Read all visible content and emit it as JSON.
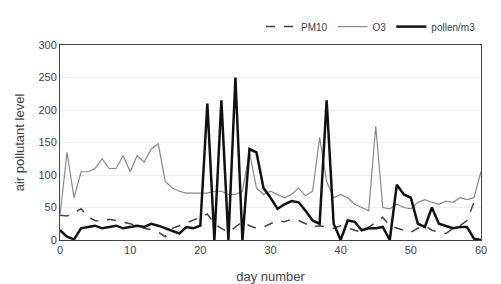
{
  "chart_data": {
    "type": "line",
    "xlabel": "day number",
    "ylabel": "air pollutant level",
    "x": [
      0,
      1,
      2,
      3,
      4,
      5,
      6,
      7,
      8,
      9,
      10,
      11,
      12,
      13,
      14,
      15,
      16,
      17,
      18,
      19,
      20,
      21,
      22,
      23,
      24,
      25,
      26,
      27,
      28,
      29,
      30,
      31,
      32,
      33,
      34,
      35,
      36,
      37,
      38,
      39,
      40,
      41,
      42,
      43,
      44,
      45,
      46,
      47,
      48,
      49,
      50,
      51,
      52,
      53,
      54,
      55,
      56,
      57,
      58,
      59,
      60
    ],
    "series": [
      {
        "name": "PM10",
        "color": "#444444",
        "line_style": "dashed",
        "values": [
          38,
          37,
          42,
          48,
          35,
          30,
          28,
          32,
          30,
          28,
          25,
          22,
          18,
          16,
          12,
          5,
          18,
          22,
          26,
          30,
          35,
          40,
          25,
          18,
          12,
          20,
          28,
          22,
          18,
          20,
          25,
          30,
          28,
          32,
          30,
          25,
          20,
          22,
          20,
          18,
          22,
          18,
          15,
          12,
          20,
          28,
          35,
          22,
          18,
          15,
          12,
          18,
          22,
          15,
          12,
          10,
          18,
          22,
          30,
          58,
          55
        ]
      },
      {
        "name": "O3",
        "color": "#888888",
        "line_style": "solid",
        "values": [
          38,
          135,
          65,
          105,
          105,
          110,
          125,
          110,
          110,
          130,
          105,
          130,
          120,
          140,
          148,
          90,
          80,
          75,
          72,
          72,
          72,
          72,
          75,
          75,
          70,
          70,
          75,
          135,
          80,
          70,
          75,
          70,
          65,
          70,
          80,
          68,
          75,
          158,
          90,
          65,
          70,
          65,
          55,
          50,
          45,
          175,
          50,
          48,
          55,
          50,
          48,
          58,
          62,
          58,
          55,
          60,
          58,
          65,
          62,
          65,
          105
        ]
      },
      {
        "name": "pollen/m3",
        "color": "#111111",
        "line_style": "solid",
        "values": [
          15,
          5,
          1,
          18,
          20,
          22,
          18,
          20,
          22,
          18,
          20,
          22,
          20,
          25,
          22,
          18,
          15,
          10,
          20,
          18,
          22,
          210,
          0,
          215,
          0,
          250,
          0,
          140,
          135,
          80,
          65,
          48,
          55,
          60,
          58,
          45,
          30,
          25,
          215,
          25,
          0,
          30,
          28,
          15,
          18,
          18,
          20,
          0,
          85,
          70,
          65,
          25,
          20,
          50,
          25,
          22,
          18,
          20,
          20,
          2,
          0
        ]
      }
    ],
    "xlim": [
      0,
      60
    ],
    "xticks": [
      0,
      10,
      20,
      30,
      40,
      50,
      60
    ],
    "ylim": [
      0,
      300
    ],
    "yticks": [
      0,
      50,
      100,
      150,
      200,
      250,
      300
    ],
    "grid": "y",
    "legend": "upper right"
  }
}
